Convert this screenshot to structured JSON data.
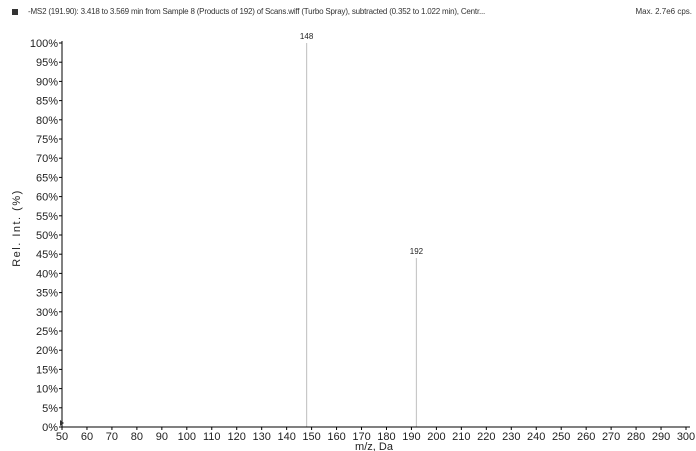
{
  "header": {
    "text": "-MS2 (191.90): 3.418 to 3.569 min from Sample 8 (Products of 192) of Scans.wiff (Turbo Spray), subtracted (0.352 to 1.022 min), Centr...",
    "max_label": "Max. 2.7e6 cps."
  },
  "chart_data": {
    "type": "bar",
    "xlabel": "m/z, Da",
    "ylabel": "Rel. Int. (%)",
    "xlim": [
      50,
      300
    ],
    "ylim": [
      0,
      100
    ],
    "xticks": [
      50,
      60,
      70,
      80,
      90,
      100,
      110,
      120,
      130,
      140,
      150,
      160,
      170,
      180,
      190,
      200,
      210,
      220,
      230,
      240,
      250,
      260,
      270,
      280,
      290,
      300
    ],
    "yticks": [
      "0%",
      "5%",
      "10%",
      "15%",
      "20%",
      "25%",
      "30%",
      "35%",
      "40%",
      "45%",
      "50%",
      "55%",
      "60%",
      "65%",
      "70%",
      "75%",
      "80%",
      "85%",
      "90%",
      "95%",
      "100%"
    ],
    "peaks": [
      {
        "mz": 148,
        "intensity": 100,
        "label": "148"
      },
      {
        "mz": 192,
        "intensity": 44,
        "label": "192"
      }
    ],
    "grid": false,
    "colors": {
      "peak": "#c8c8c8",
      "axis": "#000000"
    }
  }
}
